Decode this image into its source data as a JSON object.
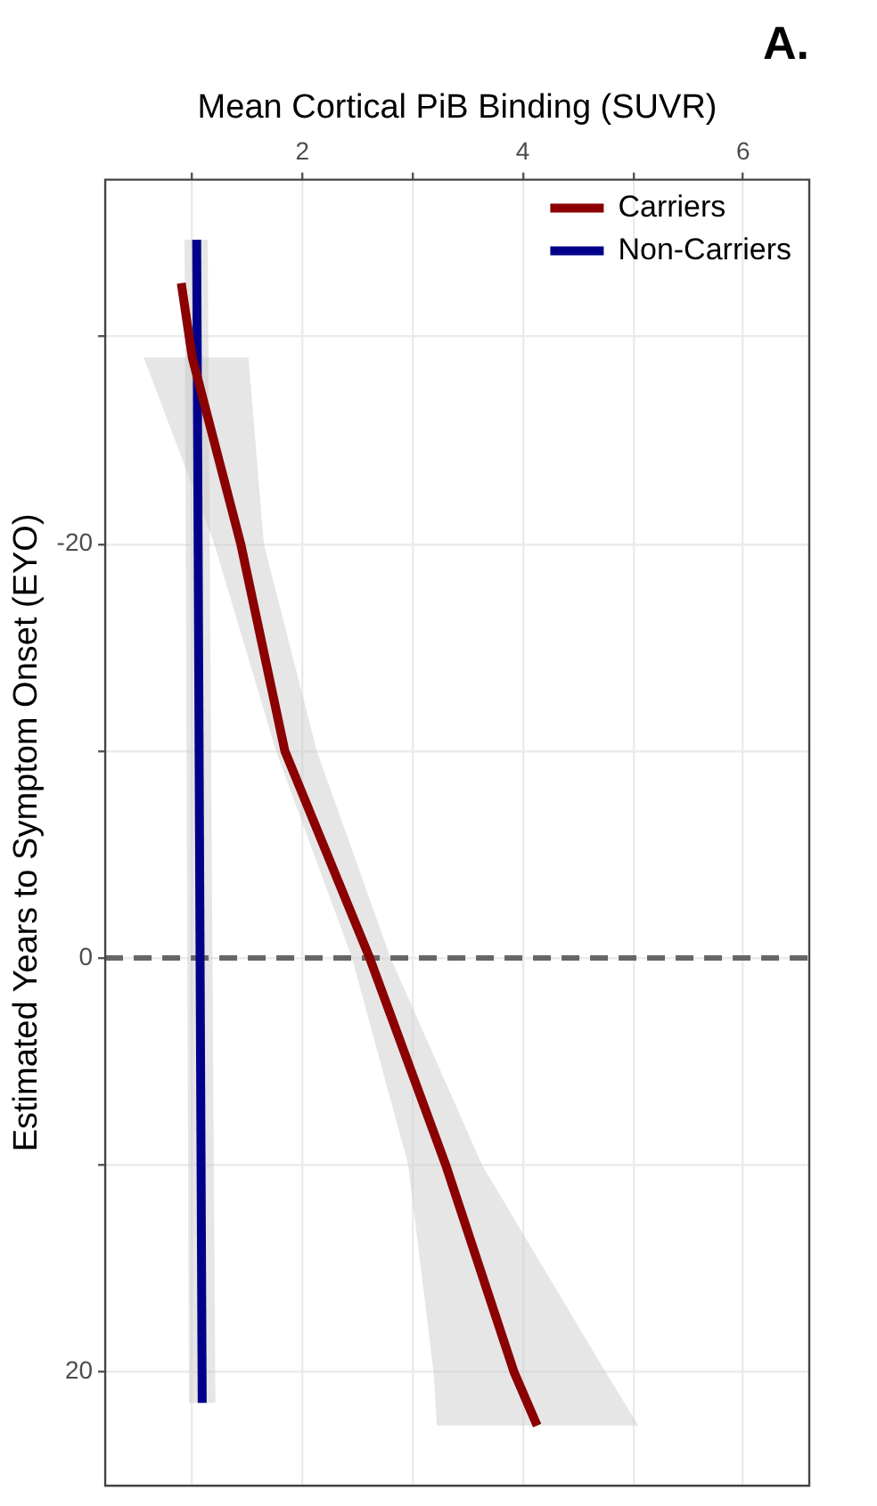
{
  "chart_data": {
    "type": "line",
    "orientation": "horizontal",
    "title": "A.",
    "xlabel": "Mean Cortical PiB Binding (SUVR)",
    "ylabel": "Estimated Years to Symptom Onset (EYO)",
    "series": [
      {
        "name": "Carriers",
        "color": "#8b0000",
        "x": [
          -32.6,
          -29,
          -20,
          -10,
          0,
          10,
          20,
          22.6
        ],
        "values": [
          0.9,
          1.0,
          1.44,
          1.84,
          2.61,
          3.3,
          3.92,
          4.13
        ],
        "lower": [
          null,
          0.56,
          1.2,
          1.76,
          2.45,
          2.96,
          3.19,
          3.22
        ],
        "upper": [
          null,
          1.51,
          1.65,
          2.13,
          2.8,
          3.63,
          4.75,
          5.05
        ]
      },
      {
        "name": "Non-Carriers",
        "color": "#00008b",
        "x": [
          -34.7,
          21.5
        ],
        "values": [
          1.04,
          1.09
        ],
        "lower": [
          0.93,
          0.97
        ],
        "upper": [
          1.14,
          1.21
        ]
      }
    ],
    "xlim": [
      0.21,
      6.6
    ],
    "ylim": [
      25.5,
      -37.6
    ],
    "xticks": [
      {
        "value": 1,
        "label": null
      },
      2,
      {
        "value": 3,
        "label": null
      },
      4,
      {
        "value": 5,
        "label": null
      },
      6
    ],
    "yticks": [
      {
        "value": -30,
        "label": null
      },
      -20,
      {
        "value": -10,
        "label": null
      },
      0,
      {
        "value": 10,
        "label": null
      },
      20
    ],
    "grid": true,
    "legend": "top right",
    "marker": "none",
    "ref_lines": [
      {
        "axis": "y",
        "value": 0,
        "color": "#666666",
        "line_style": "dashed"
      }
    ]
  }
}
